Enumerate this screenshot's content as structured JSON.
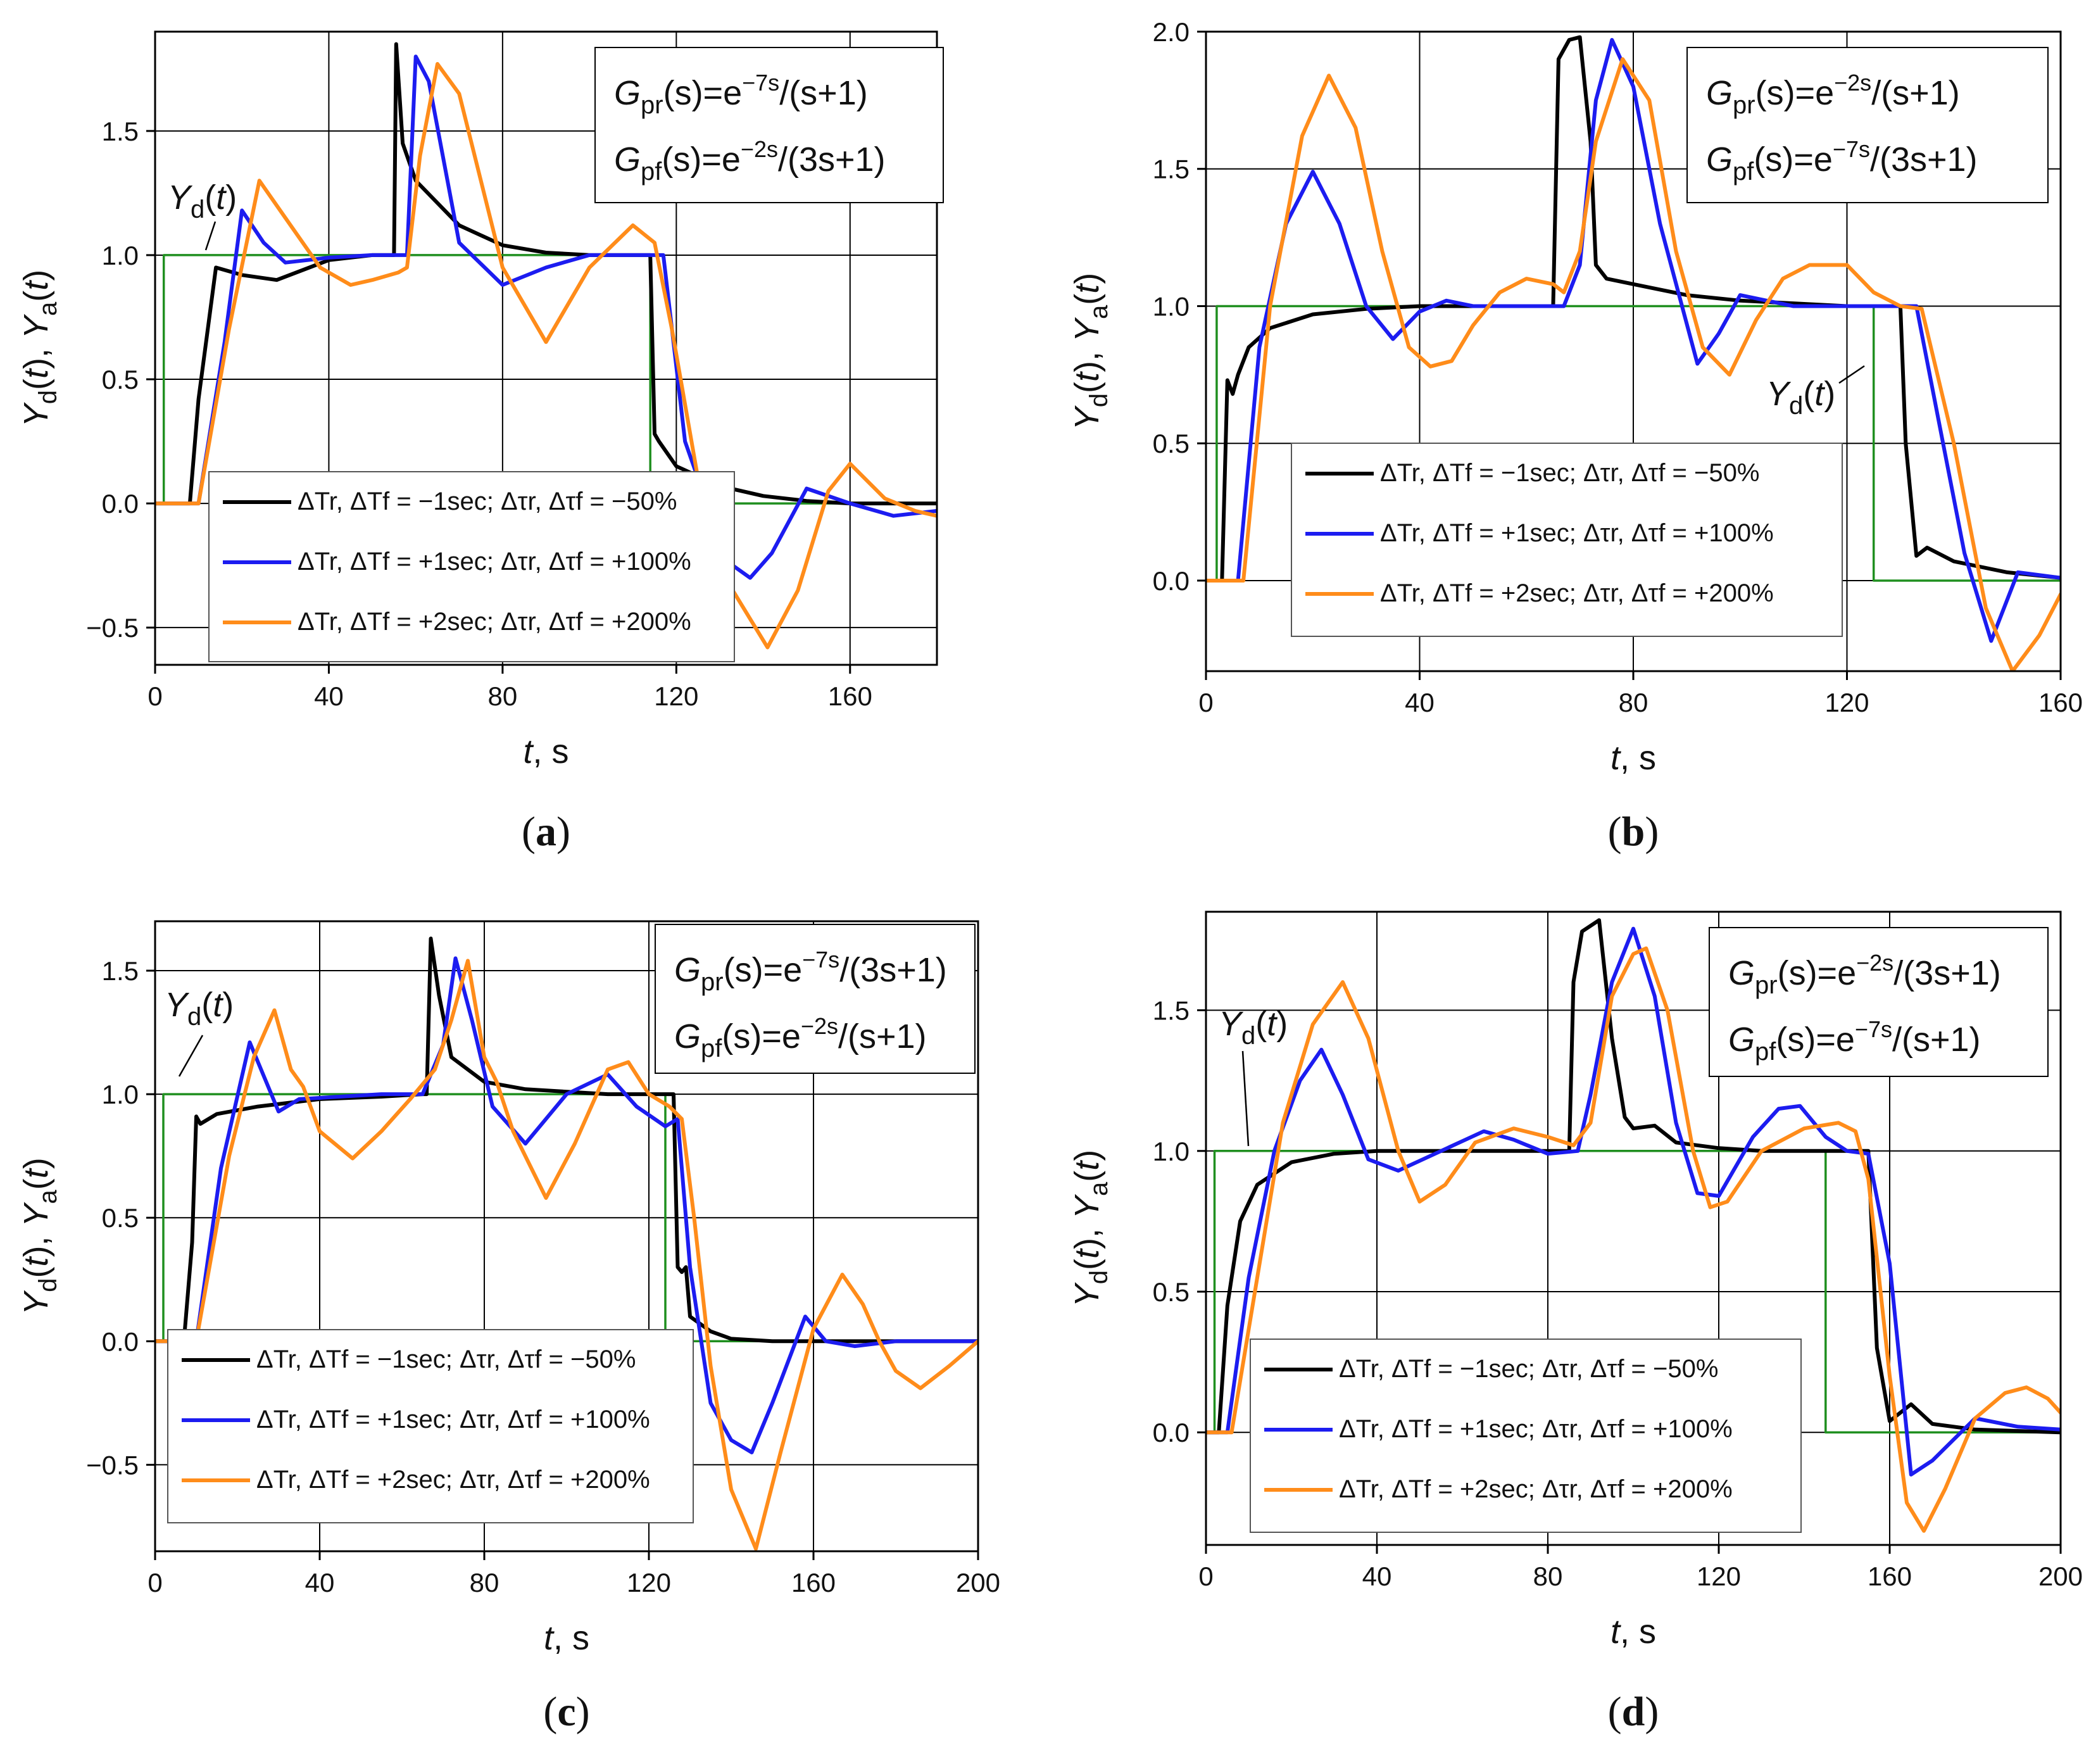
{
  "figure_title": "",
  "colors": {
    "black": "#000000",
    "blue": "#1c1cf0",
    "orange": "#ff8c1a",
    "green": "#1f8f1f",
    "grid": "#000000"
  },
  "chart_data": [
    {
      "id": "a",
      "type": "line",
      "panel_label": "(a)",
      "xlabel": "t, s",
      "ylabel": "Yd(t), Ya(t)",
      "xlim": [
        0,
        180
      ],
      "ylim": [
        -0.65,
        1.9
      ],
      "xticks": [
        "0",
        "40",
        "80",
        "120",
        "160"
      ],
      "yticks": [
        "-0.5",
        "0.0",
        "0.5",
        "1.0",
        "1.5"
      ],
      "annotation": "Yd(t)",
      "formula_pr": "Gpr(s)=e-7s/(s+1)",
      "formula_pf": "Gpf(s)=e-2s/(3s+1)",
      "legend": [
        "ΔTr, ΔTf = −1sec; Δτr, Δτf = −50%",
        "ΔTr, ΔTf = +1sec; Δτr, Δτf = +100%",
        "ΔTr, ΔTf = +2sec; Δτr, Δτf = +200%"
      ],
      "series": [
        {
          "name": "Yd(t)",
          "color": "green",
          "x": [
            0,
            2,
            2,
            114,
            114,
            180
          ],
          "y": [
            0,
            0,
            1,
            1,
            0,
            0
          ]
        },
        {
          "name": "ΔTr, ΔTf = −1sec; Δτr, Δτf = −50%",
          "color": "black",
          "x": [
            0,
            8,
            10,
            14,
            20,
            28,
            40,
            50,
            55,
            55.5,
            57,
            60,
            70,
            80,
            90,
            100,
            110,
            114,
            115,
            116,
            120,
            130,
            140,
            150,
            160,
            170,
            180
          ],
          "y": [
            0,
            0,
            0.42,
            0.95,
            0.92,
            0.9,
            0.98,
            1.0,
            1.0,
            1.85,
            1.45,
            1.3,
            1.12,
            1.04,
            1.01,
            1.0,
            1.0,
            1.0,
            0.28,
            0.25,
            0.15,
            0.07,
            0.03,
            0.01,
            0.0,
            0.0,
            0.0
          ]
        },
        {
          "name": "ΔTr, ΔTf = +1sec; Δτr, Δτf = +100%",
          "color": "blue",
          "x": [
            0,
            10,
            16,
            20,
            25,
            30,
            40,
            50,
            56,
            58,
            60,
            63,
            70,
            80,
            90,
            100,
            110,
            117,
            122,
            128,
            133,
            137,
            142,
            150,
            160,
            170,
            180
          ],
          "y": [
            0,
            0,
            0.65,
            1.18,
            1.05,
            0.97,
            0.99,
            1.0,
            1.0,
            1.0,
            1.8,
            1.7,
            1.05,
            0.88,
            0.95,
            1.0,
            1.0,
            1.0,
            0.25,
            -0.05,
            -0.25,
            -0.3,
            -0.2,
            0.06,
            0.0,
            -0.05,
            -0.03
          ]
        },
        {
          "name": "ΔTr, ΔTf = +2sec; Δτr, Δτf = +200%",
          "color": "orange",
          "x": [
            0,
            10,
            17,
            24,
            30,
            38,
            45,
            50,
            56,
            58,
            61,
            65,
            70,
            80,
            90,
            100,
            110,
            115,
            119,
            125,
            133,
            141,
            148,
            155,
            160,
            168,
            175,
            180
          ],
          "y": [
            0,
            0,
            0.7,
            1.3,
            1.15,
            0.95,
            0.88,
            0.9,
            0.93,
            0.95,
            1.4,
            1.77,
            1.65,
            0.95,
            0.65,
            0.95,
            1.12,
            1.05,
            0.7,
            0.1,
            -0.35,
            -0.58,
            -0.35,
            0.05,
            0.16,
            0.02,
            -0.03,
            -0.05
          ]
        }
      ]
    },
    {
      "id": "b",
      "type": "line",
      "panel_label": "(b)",
      "xlabel": "t, s",
      "ylabel": "Yd(t), Ya(t)",
      "xlim": [
        0,
        160
      ],
      "ylim": [
        -0.33,
        2.0
      ],
      "xticks": [
        "0",
        "40",
        "80",
        "120",
        "160"
      ],
      "yticks": [
        "0.0",
        "0.5",
        "1.0",
        "1.5",
        "2.0"
      ],
      "annotation": "Yd(t)",
      "formula_pr": "Gpr(s)=e-2s/(s+1)",
      "formula_pf": "Gpf(s)=e-7s/(3s+1)",
      "legend": [
        "ΔTr, ΔTf = −1sec; Δτr, Δτf = −50%",
        "ΔTr, ΔTf = +1sec; Δτr, Δτf = +100%",
        "ΔTr, ΔTf = +2sec; Δτr, Δτf = +200%"
      ],
      "series": [
        {
          "name": "Yd(t)",
          "color": "green",
          "x": [
            0,
            2,
            2,
            125,
            125,
            160
          ],
          "y": [
            0,
            0,
            1,
            1,
            0,
            0
          ]
        },
        {
          "name": "ΔTr, ΔTf = −1sec; Δτr, Δτf = −50%",
          "color": "black",
          "x": [
            0,
            3,
            4,
            5,
            6,
            8,
            12,
            20,
            30,
            40,
            50,
            60,
            65,
            66,
            68,
            70,
            72,
            73,
            75,
            80,
            90,
            100,
            110,
            120,
            130,
            131,
            133,
            135,
            140,
            150,
            160
          ],
          "y": [
            0,
            0,
            0.73,
            0.68,
            0.75,
            0.85,
            0.92,
            0.97,
            0.99,
            1.0,
            1.0,
            1.0,
            1.0,
            1.9,
            1.97,
            1.98,
            1.6,
            1.15,
            1.1,
            1.08,
            1.04,
            1.02,
            1.01,
            1.0,
            1.0,
            0.5,
            0.09,
            0.12,
            0.07,
            0.03,
            0.01
          ]
        },
        {
          "name": "ΔTr, ΔTf = +1sec; Δτr, Δτf = +100%",
          "color": "blue",
          "x": [
            0,
            6,
            10,
            15,
            20,
            25,
            30,
            35,
            40,
            45,
            50,
            55,
            60,
            65,
            67,
            70,
            73,
            76,
            80,
            85,
            92,
            96,
            100,
            110,
            120,
            130,
            133,
            137,
            142,
            147,
            152,
            160
          ],
          "y": [
            0,
            0,
            0.85,
            1.3,
            1.49,
            1.3,
            1.0,
            0.88,
            0.98,
            1.02,
            1.0,
            1.0,
            1.0,
            1.0,
            1.0,
            1.15,
            1.75,
            1.97,
            1.8,
            1.3,
            0.79,
            0.9,
            1.04,
            1.0,
            1.0,
            1.0,
            1.0,
            0.6,
            0.1,
            -0.22,
            0.03,
            0.01
          ]
        },
        {
          "name": "ΔTr, ΔTf = +2sec; Δτr, Δτf = +200%",
          "color": "orange",
          "x": [
            0,
            7,
            12,
            18,
            23,
            28,
            33,
            38,
            42,
            46,
            50,
            55,
            60,
            65,
            67,
            70,
            73,
            78,
            83,
            88,
            93,
            98,
            103,
            108,
            113,
            120,
            125,
            130,
            134,
            140,
            146,
            151,
            156,
            160
          ],
          "y": [
            0,
            0,
            1.0,
            1.62,
            1.84,
            1.65,
            1.2,
            0.85,
            0.78,
            0.8,
            0.93,
            1.05,
            1.1,
            1.08,
            1.05,
            1.2,
            1.6,
            1.9,
            1.75,
            1.2,
            0.85,
            0.75,
            0.95,
            1.1,
            1.15,
            1.15,
            1.05,
            1.0,
            0.99,
            0.5,
            -0.1,
            -0.33,
            -0.2,
            -0.05
          ]
        }
      ]
    },
    {
      "id": "c",
      "type": "line",
      "panel_label": "(c)",
      "xlabel": "t, s",
      "ylabel": "Yd(t), Ya(t)",
      "xlim": [
        0,
        200
      ],
      "ylim": [
        -0.85,
        1.7
      ],
      "xticks": [
        "0",
        "40",
        "80",
        "120",
        "160",
        "200"
      ],
      "yticks": [
        "-0.5",
        "0.0",
        "0.5",
        "1.0",
        "1.5"
      ],
      "annotation": "Yd(t)",
      "formula_pr": "Gpr(s)=e-7s/(3s+1)",
      "formula_pf": "Gpf(s)=e-2s/(s+1)",
      "legend": [
        "ΔTr, ΔTf = −1sec; Δτr, Δτf = −50%",
        "ΔTr, ΔTf = +1sec; Δτr, Δτf = +100%",
        "ΔTr, ΔTf = +2sec; Δτr, Δτf = +200%"
      ],
      "series": [
        {
          "name": "Yd(t)",
          "color": "green",
          "x": [
            0,
            2,
            2,
            124,
            124,
            200
          ],
          "y": [
            0,
            0,
            1,
            1,
            0,
            0
          ]
        },
        {
          "name": "ΔTr, ΔTf = −1sec; Δτr, Δτf = −50%",
          "color": "black",
          "x": [
            0,
            7,
            9,
            10,
            11,
            15,
            25,
            40,
            55,
            65,
            66,
            67,
            69,
            72,
            80,
            90,
            100,
            110,
            120,
            126,
            127,
            128,
            129,
            130,
            135,
            140,
            150,
            160,
            200
          ],
          "y": [
            0,
            0,
            0.4,
            0.91,
            0.88,
            0.92,
            0.95,
            0.98,
            0.99,
            1.0,
            1.0,
            1.63,
            1.4,
            1.15,
            1.05,
            1.02,
            1.01,
            1.0,
            1.0,
            1.0,
            0.3,
            0.28,
            0.3,
            0.1,
            0.04,
            0.01,
            0.0,
            0.0,
            0.0
          ]
        },
        {
          "name": "ΔTr, ΔTf = +1sec; Δτr, Δτf = +100%",
          "color": "blue",
          "x": [
            0,
            10,
            16,
            23,
            27,
            30,
            35,
            45,
            55,
            65,
            70,
            73,
            77,
            82,
            90,
            100,
            110,
            117,
            124,
            127,
            130,
            135,
            140,
            145,
            150,
            158,
            163,
            170,
            180,
            200
          ],
          "y": [
            0,
            0,
            0.7,
            1.21,
            1.05,
            0.93,
            0.98,
            0.99,
            1.0,
            1.0,
            1.2,
            1.55,
            1.3,
            0.95,
            0.8,
            1.0,
            1.08,
            0.95,
            0.87,
            0.9,
            0.3,
            -0.25,
            -0.4,
            -0.45,
            -0.25,
            0.1,
            0.0,
            -0.02,
            0.0,
            0.0
          ]
        },
        {
          "name": "ΔTr, ΔTf = +2sec; Δτr, Δτf = +200%",
          "color": "orange",
          "x": [
            0,
            10,
            18,
            24,
            29,
            33,
            36,
            40,
            48,
            55,
            62,
            68,
            72,
            76,
            80,
            83,
            87,
            95,
            102,
            110,
            115,
            120,
            125,
            128,
            131,
            135,
            140,
            146,
            152,
            160,
            167,
            172,
            176,
            180,
            186,
            193,
            200
          ],
          "y": [
            0,
            0,
            0.75,
            1.15,
            1.34,
            1.1,
            1.03,
            0.85,
            0.74,
            0.85,
            0.98,
            1.1,
            1.3,
            1.54,
            1.15,
            1.05,
            0.85,
            0.58,
            0.8,
            1.1,
            1.13,
            1.0,
            0.95,
            0.9,
            0.5,
            -0.1,
            -0.6,
            -0.84,
            -0.45,
            0.05,
            0.27,
            0.15,
            0.0,
            -0.12,
            -0.19,
            -0.1,
            0.0
          ]
        }
      ]
    },
    {
      "id": "d",
      "type": "line",
      "panel_label": "(d)",
      "xlabel": "t, s",
      "ylabel": "Yd(t), Ya(t)",
      "xlim": [
        0,
        200
      ],
      "ylim": [
        -0.4,
        1.85
      ],
      "xticks": [
        "0",
        "40",
        "80",
        "120",
        "160",
        "200"
      ],
      "yticks": [
        "0.0",
        "0.5",
        "1.0",
        "1.5"
      ],
      "annotation": "Yd(t)",
      "formula_pr": "Gpr(s)=e-2s/(3s+1)",
      "formula_pf": "Gpf(s)=e-7s/(s+1)",
      "legend": [
        "ΔTr, ΔTf = −1sec; Δτr, Δτf = −50%",
        "ΔTr, ΔTf = +1sec; Δτr, Δτf = +100%",
        "ΔTr, ΔTf = +2sec; Δτr, Δτf = +200%"
      ],
      "series": [
        {
          "name": "Yd(t)",
          "color": "green",
          "x": [
            0,
            2,
            2,
            145,
            145,
            200
          ],
          "y": [
            0,
            0,
            1,
            1,
            0,
            0
          ]
        },
        {
          "name": "ΔTr, ΔTf = −1sec; Δτr, Δτf = −50%",
          "color": "black",
          "x": [
            0,
            3,
            5,
            8,
            12,
            20,
            30,
            40,
            50,
            60,
            70,
            80,
            85,
            86,
            88,
            92,
            95,
            98,
            100,
            105,
            110,
            120,
            130,
            140,
            150,
            155,
            157,
            160,
            165,
            170,
            180,
            200
          ],
          "y": [
            0,
            0,
            0.45,
            0.75,
            0.88,
            0.96,
            0.99,
            1.0,
            1.0,
            1.0,
            1.0,
            1.0,
            1.0,
            1.6,
            1.78,
            1.82,
            1.4,
            1.12,
            1.08,
            1.09,
            1.03,
            1.01,
            1.0,
            1.0,
            1.0,
            1.0,
            0.3,
            0.04,
            0.1,
            0.03,
            0.01,
            0.0
          ]
        },
        {
          "name": "ΔTr, ΔTf = +1sec; Δτr, Δτf = +100%",
          "color": "blue",
          "x": [
            0,
            5,
            10,
            16,
            22,
            27,
            32,
            38,
            45,
            55,
            65,
            72,
            80,
            87,
            90,
            95,
            100,
            105,
            110,
            115,
            120,
            128,
            134,
            139,
            145,
            150,
            155,
            160,
            165,
            170,
            180,
            190,
            200
          ],
          "y": [
            0,
            0,
            0.55,
            1.0,
            1.25,
            1.36,
            1.2,
            0.97,
            0.93,
            1.0,
            1.07,
            1.04,
            0.99,
            1.0,
            1.2,
            1.6,
            1.79,
            1.55,
            1.1,
            0.85,
            0.84,
            1.05,
            1.15,
            1.16,
            1.05,
            1.0,
            0.99,
            0.6,
            -0.15,
            -0.1,
            0.05,
            0.02,
            0.01
          ]
        },
        {
          "name": "ΔTr, ΔTf = +2sec; Δτr, Δτf = +200%",
          "color": "orange",
          "x": [
            0,
            6,
            12,
            18,
            25,
            32,
            38,
            45,
            50,
            56,
            63,
            72,
            80,
            86,
            90,
            95,
            100,
            103,
            108,
            114,
            118,
            122,
            130,
            140,
            148,
            152,
            155,
            160,
            164,
            168,
            173,
            180,
            187,
            192,
            197,
            200
          ],
          "y": [
            0,
            0,
            0.55,
            1.1,
            1.45,
            1.6,
            1.4,
            1.0,
            0.82,
            0.88,
            1.03,
            1.08,
            1.05,
            1.02,
            1.1,
            1.55,
            1.7,
            1.72,
            1.5,
            1.0,
            0.8,
            0.82,
            1.0,
            1.08,
            1.1,
            1.07,
            0.9,
            0.2,
            -0.25,
            -0.35,
            -0.2,
            0.05,
            0.14,
            0.16,
            0.12,
            0.07
          ]
        }
      ]
    }
  ]
}
